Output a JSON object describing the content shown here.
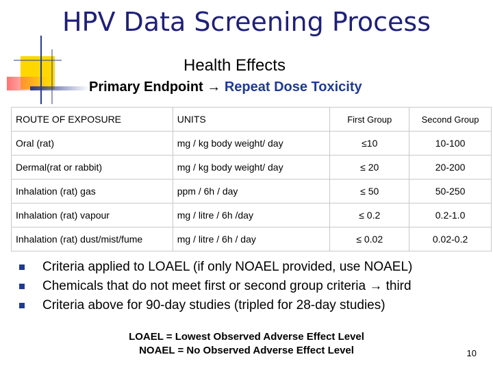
{
  "slide": {
    "title": "HPV Data Screening Process",
    "subtitle": "Health Effects",
    "endpoint_prefix": "Primary Endpoint",
    "endpoint_arrow": "→",
    "endpoint_value": "Repeat Dose Toxicity",
    "page_number": "10"
  },
  "table": {
    "headers": [
      "ROUTE OF EXPOSURE",
      "UNITS",
      "First Group",
      "Second Group"
    ],
    "rows": [
      {
        "route": "Oral (rat)",
        "units": "mg / kg body weight/ day",
        "first": "≤10",
        "second": "10-100"
      },
      {
        "route": "Dermal(rat or rabbit)",
        "units": "mg / kg body weight/ day",
        "first": "≤ 20",
        "second": "20-200"
      },
      {
        "route": "Inhalation (rat) gas",
        "units": "ppm / 6h / day",
        "first": "≤ 50",
        "second": "50-250"
      },
      {
        "route": "Inhalation (rat) vapour",
        "units": "mg / litre / 6h /day",
        "first": "≤ 0.2",
        "second": "0.2-1.0"
      },
      {
        "route": "Inhalation (rat) dust/mist/fume",
        "units": "mg / litre / 6h / day",
        "first": "≤ 0.02",
        "second": "0.02-0.2"
      }
    ]
  },
  "bullets": [
    "Criteria applied to LOAEL (if only NOAEL provided, use NOAEL)",
    "Chemicals that do not meet first or second group criteria → third",
    "Criteria above for 90-day studies (tripled for 28-day studies)"
  ],
  "footer": {
    "line1": "LOAEL = Lowest Observed Adverse Effect Level",
    "line2": "NOAEL = No Observed Adverse Effect Level"
  },
  "colors": {
    "title": "#1f1f7a",
    "accent": "#1f3a93",
    "deco_yellow": "#ffd700",
    "deco_red": "#ff5a5a",
    "deco_blue": "#2a3a8c"
  }
}
